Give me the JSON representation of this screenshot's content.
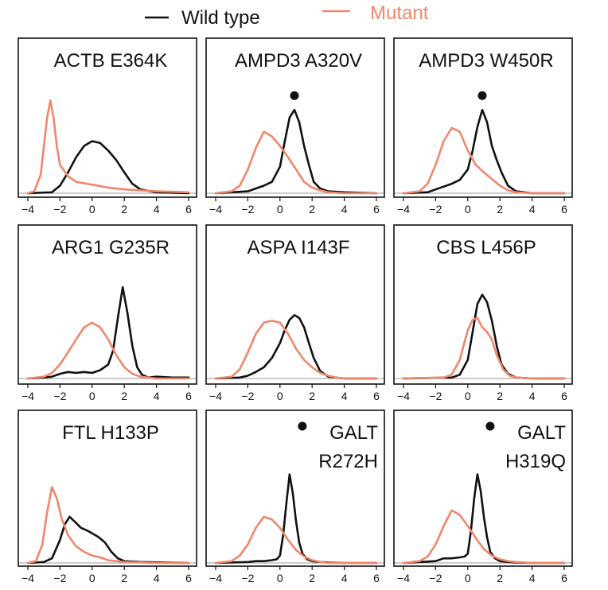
{
  "legend": {
    "wild_label": "Wild type",
    "mutant_label": "Mutant",
    "wild_color": "#111111",
    "mutant_color": "#f0876a"
  },
  "chart_data": [
    {
      "type": "line",
      "title": "ACTB E364K",
      "xlim": [
        -4,
        6
      ],
      "ylim": [
        0,
        1.05
      ],
      "xticks": [
        -4,
        -2,
        0,
        2,
        4,
        6
      ],
      "marker": false,
      "series": [
        {
          "name": "Wild type",
          "x": [
            -4,
            -2.5,
            -2,
            -1.5,
            -1,
            -0.5,
            0,
            0.5,
            1,
            1.5,
            2,
            2.5,
            3,
            4,
            6
          ],
          "y": [
            0,
            0.01,
            0.08,
            0.22,
            0.38,
            0.5,
            0.55,
            0.53,
            0.45,
            0.35,
            0.22,
            0.1,
            0.04,
            0.01,
            0
          ]
        },
        {
          "name": "Mutant",
          "x": [
            -4,
            -3.6,
            -3.2,
            -3,
            -2.8,
            -2.6,
            -2.4,
            -2.2,
            -2,
            -1.5,
            -1,
            0,
            1,
            2,
            4,
            6
          ],
          "y": [
            0,
            0.02,
            0.2,
            0.5,
            0.8,
            0.98,
            0.8,
            0.5,
            0.3,
            0.18,
            0.12,
            0.09,
            0.06,
            0.04,
            0.02,
            0.01
          ]
        }
      ]
    },
    {
      "type": "line",
      "title": "AMPD3 A320V",
      "xlim": [
        -4,
        6
      ],
      "ylim": [
        0,
        1.05
      ],
      "xticks": [
        -4,
        -2,
        0,
        2,
        4,
        6
      ],
      "marker": true,
      "series": [
        {
          "name": "Wild type",
          "x": [
            -4,
            -2,
            -1.5,
            -1,
            -0.5,
            0,
            0.3,
            0.6,
            0.9,
            1.2,
            1.5,
            1.8,
            2.1,
            2.5,
            3,
            4,
            6
          ],
          "y": [
            0,
            0.02,
            0.05,
            0.08,
            0.12,
            0.28,
            0.55,
            0.8,
            0.88,
            0.75,
            0.5,
            0.3,
            0.12,
            0.05,
            0.02,
            0.01,
            0
          ]
        },
        {
          "name": "Mutant",
          "x": [
            -4,
            -3,
            -2.5,
            -2,
            -1.5,
            -1,
            -0.5,
            0,
            0.5,
            1,
            1.5,
            2,
            2.5,
            3,
            4,
            6
          ],
          "y": [
            0,
            0.02,
            0.08,
            0.25,
            0.48,
            0.65,
            0.6,
            0.5,
            0.38,
            0.25,
            0.12,
            0.06,
            0.03,
            0.01,
            0,
            0
          ]
        }
      ]
    },
    {
      "type": "line",
      "title": "AMPD3 W450R",
      "xlim": [
        -4,
        6
      ],
      "ylim": [
        0,
        1.05
      ],
      "xticks": [
        -4,
        -2,
        0,
        2,
        4,
        6
      ],
      "marker": true,
      "series": [
        {
          "name": "Wild type",
          "x": [
            -4,
            -2.5,
            -2,
            -1.5,
            -1,
            -0.5,
            0,
            0.3,
            0.6,
            0.9,
            1.2,
            1.5,
            1.8,
            2.1,
            2.5,
            3,
            4,
            6
          ],
          "y": [
            0,
            0.01,
            0.04,
            0.07,
            0.1,
            0.14,
            0.25,
            0.45,
            0.7,
            0.88,
            0.75,
            0.5,
            0.35,
            0.22,
            0.08,
            0.02,
            0,
            0
          ]
        },
        {
          "name": "Mutant",
          "x": [
            -4,
            -3,
            -2.5,
            -2,
            -1.5,
            -1,
            -0.5,
            0,
            0.5,
            1,
            1.5,
            2,
            2.5,
            3,
            4,
            6
          ],
          "y": [
            0,
            0.02,
            0.1,
            0.3,
            0.55,
            0.69,
            0.65,
            0.45,
            0.3,
            0.22,
            0.15,
            0.08,
            0.03,
            0.01,
            0,
            0
          ]
        }
      ]
    },
    {
      "type": "line",
      "title": "ARG1 G235R",
      "xlim": [
        -4,
        6
      ],
      "ylim": [
        0,
        1.05
      ],
      "xticks": [
        -4,
        -2,
        0,
        2,
        4,
        6
      ],
      "marker": false,
      "series": [
        {
          "name": "Wild type",
          "x": [
            -4,
            -3,
            -2.5,
            -2,
            -1.5,
            -1,
            -0.5,
            0,
            0.5,
            1,
            1.3,
            1.6,
            1.9,
            2.2,
            2.5,
            2.8,
            3.1,
            3.5,
            4,
            5,
            6
          ],
          "y": [
            0,
            0.01,
            0.02,
            0.05,
            0.07,
            0.06,
            0.07,
            0.06,
            0.09,
            0.15,
            0.3,
            0.65,
            0.98,
            0.7,
            0.35,
            0.12,
            0.04,
            0.01,
            0.02,
            0.01,
            0.01
          ]
        },
        {
          "name": "Mutant",
          "x": [
            -4,
            -3,
            -2.5,
            -2,
            -1.5,
            -1,
            -0.5,
            0,
            0.5,
            1,
            1.5,
            2,
            2.5,
            3,
            4,
            6
          ],
          "y": [
            0,
            0.02,
            0.06,
            0.15,
            0.28,
            0.42,
            0.55,
            0.6,
            0.55,
            0.42,
            0.25,
            0.12,
            0.05,
            0.02,
            0,
            0
          ]
        }
      ]
    },
    {
      "type": "line",
      "title": "ASPA I143F",
      "xlim": [
        -4,
        6
      ],
      "ylim": [
        0,
        1.05
      ],
      "xticks": [
        -4,
        -2,
        0,
        2,
        4,
        6
      ],
      "marker": false,
      "series": [
        {
          "name": "Wild type",
          "x": [
            -4,
            -2.5,
            -2,
            -1.5,
            -1,
            -0.5,
            0,
            0.3,
            0.6,
            0.9,
            1.2,
            1.5,
            1.8,
            2.1,
            2.5,
            3,
            4,
            6
          ],
          "y": [
            0,
            0.01,
            0.03,
            0.07,
            0.12,
            0.22,
            0.38,
            0.52,
            0.63,
            0.68,
            0.65,
            0.55,
            0.38,
            0.22,
            0.08,
            0.02,
            0,
            0
          ]
        },
        {
          "name": "Mutant",
          "x": [
            -4,
            -3,
            -2.5,
            -2,
            -1.5,
            -1,
            -0.5,
            0,
            0.5,
            1,
            1.5,
            2,
            2.5,
            3,
            3.5,
            4,
            6
          ],
          "y": [
            0,
            0.02,
            0.1,
            0.28,
            0.48,
            0.6,
            0.62,
            0.6,
            0.48,
            0.32,
            0.2,
            0.12,
            0.06,
            0.03,
            0.01,
            0,
            0
          ]
        }
      ]
    },
    {
      "type": "line",
      "title": "CBS L456P",
      "xlim": [
        -4,
        6
      ],
      "ylim": [
        0,
        1.05
      ],
      "xticks": [
        -4,
        -2,
        0,
        2,
        4,
        6
      ],
      "marker": false,
      "series": [
        {
          "name": "Wild type",
          "x": [
            -4,
            -1,
            -0.5,
            0,
            0.3,
            0.6,
            0.9,
            1.2,
            1.5,
            1.8,
            2.1,
            2.5,
            3,
            4,
            6
          ],
          "y": [
            0,
            0.01,
            0.04,
            0.2,
            0.5,
            0.8,
            0.9,
            0.82,
            0.62,
            0.35,
            0.15,
            0.05,
            0.01,
            0,
            0
          ]
        },
        {
          "name": "Mutant",
          "x": [
            -4,
            -1.5,
            -1,
            -0.5,
            0,
            0.3,
            0.6,
            0.9,
            1.2,
            1.5,
            1.8,
            2.2,
            2.6,
            3,
            4,
            6
          ],
          "y": [
            0,
            0.01,
            0.04,
            0.2,
            0.52,
            0.63,
            0.65,
            0.55,
            0.5,
            0.42,
            0.25,
            0.1,
            0.03,
            0.01,
            0,
            0
          ]
        }
      ]
    },
    {
      "type": "line",
      "title": "FTL H133P",
      "xlim": [
        -4,
        6
      ],
      "ylim": [
        0,
        1.05
      ],
      "xticks": [
        -4,
        -2,
        0,
        2,
        4,
        6
      ],
      "marker": false,
      "series": [
        {
          "name": "Wild type",
          "x": [
            -4,
            -3,
            -2.5,
            -2,
            -1.7,
            -1.4,
            -1.1,
            -0.7,
            -0.3,
            0,
            0.4,
            0.8,
            1.2,
            1.6,
            2,
            3,
            6
          ],
          "y": [
            0,
            0.01,
            0.05,
            0.25,
            0.42,
            0.5,
            0.45,
            0.38,
            0.35,
            0.32,
            0.28,
            0.22,
            0.12,
            0.05,
            0.02,
            0.01,
            0
          ]
        },
        {
          "name": "Mutant",
          "x": [
            -4,
            -3.5,
            -3.1,
            -2.8,
            -2.5,
            -2.2,
            -1.9,
            -1.5,
            -1,
            -0.5,
            0,
            0.5,
            1,
            2,
            4,
            6
          ],
          "y": [
            0,
            0.02,
            0.2,
            0.55,
            0.82,
            0.7,
            0.48,
            0.3,
            0.18,
            0.12,
            0.08,
            0.06,
            0.03,
            0.01,
            0,
            0
          ]
        }
      ]
    },
    {
      "type": "line",
      "title": "GALT R272H",
      "xlim": [
        -4,
        6
      ],
      "ylim": [
        0,
        1.05
      ],
      "xticks": [
        -4,
        -2,
        0,
        2,
        4,
        6
      ],
      "marker": true,
      "series": [
        {
          "name": "Wild type",
          "x": [
            -4,
            -2,
            -1.5,
            -1,
            -0.5,
            -0.2,
            0,
            0.2,
            0.4,
            0.6,
            0.8,
            1,
            1.2,
            1.4,
            1.7,
            2,
            2.5,
            3,
            4,
            6
          ],
          "y": [
            0,
            0.01,
            0.02,
            0.02,
            0.03,
            0.04,
            0.08,
            0.3,
            0.65,
            0.96,
            0.75,
            0.45,
            0.22,
            0.1,
            0.04,
            0.02,
            0.01,
            0.005,
            0,
            0
          ]
        },
        {
          "name": "Mutant",
          "x": [
            -4,
            -3,
            -2.5,
            -2,
            -1.5,
            -1,
            -0.5,
            0,
            0.5,
            1,
            1.5,
            2,
            2.5,
            3,
            4,
            6
          ],
          "y": [
            0,
            0.02,
            0.08,
            0.2,
            0.38,
            0.5,
            0.47,
            0.38,
            0.25,
            0.14,
            0.07,
            0.03,
            0.01,
            0,
            0,
            0
          ]
        }
      ]
    },
    {
      "type": "line",
      "title": "GALT H319Q",
      "xlim": [
        -4,
        6
      ],
      "ylim": [
        0,
        1.05
      ],
      "xticks": [
        -4,
        -2,
        0,
        2,
        4,
        6
      ],
      "marker": true,
      "series": [
        {
          "name": "Wild type",
          "x": [
            -4,
            -2,
            -1.5,
            -1,
            -0.5,
            -0.2,
            0,
            0.2,
            0.4,
            0.6,
            0.8,
            1,
            1.2,
            1.4,
            1.7,
            2,
            2.5,
            3,
            4,
            6
          ],
          "y": [
            0,
            0.02,
            0.05,
            0.05,
            0.06,
            0.07,
            0.1,
            0.35,
            0.7,
            0.96,
            0.78,
            0.5,
            0.28,
            0.12,
            0.05,
            0.02,
            0.01,
            0.005,
            0,
            0
          ]
        },
        {
          "name": "Mutant",
          "x": [
            -4,
            -3,
            -2.5,
            -2,
            -1.5,
            -1,
            -0.5,
            0,
            0.5,
            1,
            1.5,
            2,
            2.5,
            3,
            4,
            6
          ],
          "y": [
            0,
            0.02,
            0.07,
            0.2,
            0.4,
            0.57,
            0.52,
            0.4,
            0.27,
            0.15,
            0.08,
            0.04,
            0.02,
            0.01,
            0,
            0
          ]
        }
      ]
    }
  ]
}
